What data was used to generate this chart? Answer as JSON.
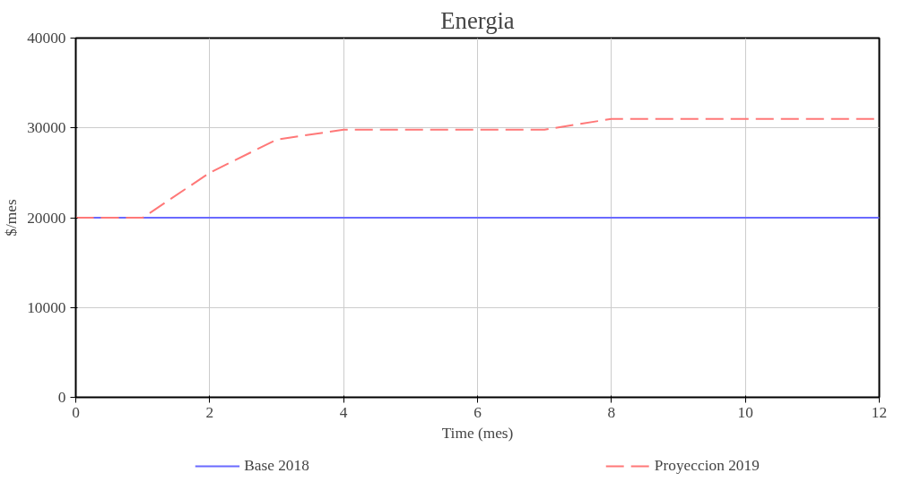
{
  "chart_data": {
    "type": "line",
    "title": "Energia",
    "xlabel": "Time (mes)",
    "ylabel": "$/mes",
    "x": [
      0,
      1,
      2,
      3,
      4,
      5,
      6,
      7,
      8,
      9,
      10,
      11,
      12
    ],
    "series": [
      {
        "name": "Base 2018",
        "color": "#6a6aff",
        "line_style": "solid",
        "values": [
          20000,
          20000,
          20000,
          20000,
          20000,
          20000,
          20000,
          20000,
          20000,
          20000,
          20000,
          20000,
          20000
        ]
      },
      {
        "name": "Proyeccion 2019",
        "color": "#ff7878",
        "line_style": "dashed",
        "values": [
          20000,
          20000,
          25000,
          28700,
          29800,
          29800,
          29800,
          29800,
          31000,
          31000,
          31000,
          31000,
          31000
        ]
      }
    ],
    "xlim": [
      0,
      12
    ],
    "xticks": [
      0,
      2,
      4,
      6,
      8,
      10,
      12
    ],
    "ylim": [
      0,
      40000
    ],
    "yticks": [
      0,
      10000,
      20000,
      30000,
      40000
    ],
    "grid": true,
    "legend": "bottom",
    "marker": "none"
  }
}
